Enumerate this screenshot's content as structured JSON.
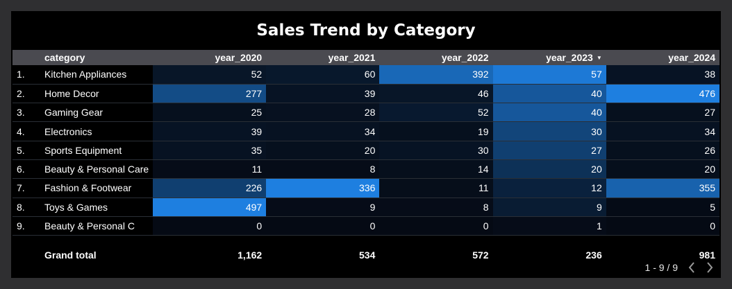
{
  "title": "Sales Trend by Category",
  "headers": {
    "category": "category",
    "years": [
      "year_2020",
      "year_2021",
      "year_2022",
      "year_2023",
      "year_2024"
    ],
    "sort_icon": "sort-descending-icon"
  },
  "rows": [
    {
      "num": "1.",
      "category": "Kitchen Appliances",
      "values": [
        "52",
        "60",
        "392",
        "57",
        "38"
      ],
      "heat": [
        0.1,
        0.12,
        0.8,
        0.95,
        0.08
      ]
    },
    {
      "num": "2.",
      "category": "Home Decor",
      "values": [
        "277",
        "39",
        "46",
        "40",
        "476"
      ],
      "heat": [
        0.56,
        0.08,
        0.1,
        0.66,
        1.0
      ]
    },
    {
      "num": "3.",
      "category": "Gaming Gear",
      "values": [
        "25",
        "28",
        "52",
        "40",
        "27"
      ],
      "heat": [
        0.05,
        0.06,
        0.13,
        0.66,
        0.05
      ]
    },
    {
      "num": "4.",
      "category": "Electronics",
      "values": [
        "39",
        "34",
        "19",
        "30",
        "34"
      ],
      "heat": [
        0.08,
        0.07,
        0.05,
        0.5,
        0.07
      ]
    },
    {
      "num": "5.",
      "category": "Sports Equipment",
      "values": [
        "35",
        "20",
        "30",
        "27",
        "26"
      ],
      "heat": [
        0.07,
        0.05,
        0.08,
        0.45,
        0.05
      ]
    },
    {
      "num": "6.",
      "category": "Beauty & Personal Care",
      "values": [
        "11",
        "8",
        "14",
        "20",
        "20"
      ],
      "heat": [
        0.02,
        0.02,
        0.04,
        0.33,
        0.04
      ]
    },
    {
      "num": "7.",
      "category": "Fashion & Footwear",
      "values": [
        "226",
        "336",
        "11",
        "12",
        "355"
      ],
      "heat": [
        0.45,
        1.0,
        0.03,
        0.2,
        0.75
      ]
    },
    {
      "num": "8.",
      "category": "Toys & Games",
      "values": [
        "497",
        "9",
        "8",
        "9",
        "5"
      ],
      "heat": [
        1.0,
        0.02,
        0.02,
        0.15,
        0.01
      ]
    },
    {
      "num": "9.",
      "category": "Beauty & Personal C",
      "values": [
        "0",
        "0",
        "0",
        "1",
        "0"
      ],
      "heat": [
        0.0,
        0.0,
        0.0,
        0.02,
        0.0
      ]
    }
  ],
  "totals": {
    "label": "Grand total",
    "values": [
      "1,162",
      "534",
      "572",
      "236",
      "981"
    ]
  },
  "pager": {
    "range": "1 - 9 / 9",
    "prev_icon": "chevron-left-icon",
    "next_icon": "chevron-right-icon"
  },
  "colors": {
    "background": "#2f2f31",
    "panel": "#000000",
    "header_bg": "#4a4a50",
    "heat_low": "#050a14",
    "heat_high": "#1e7fe0",
    "row_divider": "#2a2f36"
  }
}
